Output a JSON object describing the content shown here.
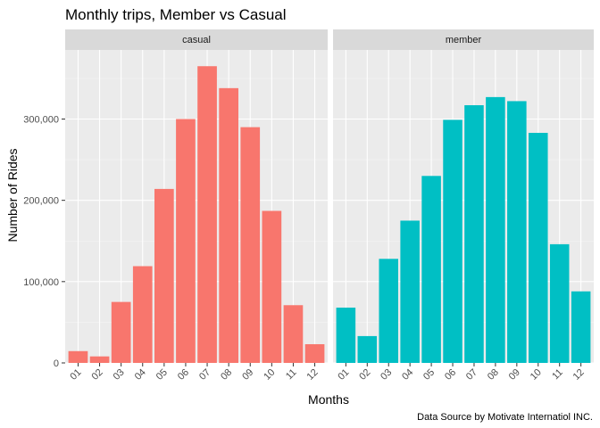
{
  "chart_data": {
    "type": "bar",
    "title": "Monthly trips, Member vs Casual",
    "xlabel": "Months",
    "ylabel": "Number of Rides",
    "caption": "Data Source by Motivate Internatiol INC.",
    "ylim": [
      0,
      385000
    ],
    "yticks": [
      0,
      100000,
      200000,
      300000
    ],
    "ytick_labels": [
      "0",
      "100,000",
      "200,000",
      "300,000"
    ],
    "grid": true,
    "categories": [
      "01",
      "02",
      "03",
      "04",
      "05",
      "06",
      "07",
      "08",
      "09",
      "10",
      "11",
      "12"
    ],
    "facets": [
      {
        "label": "casual",
        "color": "#F8766D",
        "values": [
          14500,
          8000,
          75000,
          119000,
          214000,
          300000,
          365000,
          338000,
          290000,
          187000,
          71000,
          23000
        ]
      },
      {
        "label": "member",
        "color": "#00BFC4",
        "values": [
          68000,
          33000,
          128000,
          175000,
          230000,
          299000,
          317000,
          327000,
          322000,
          283000,
          146000,
          88000
        ]
      }
    ]
  }
}
